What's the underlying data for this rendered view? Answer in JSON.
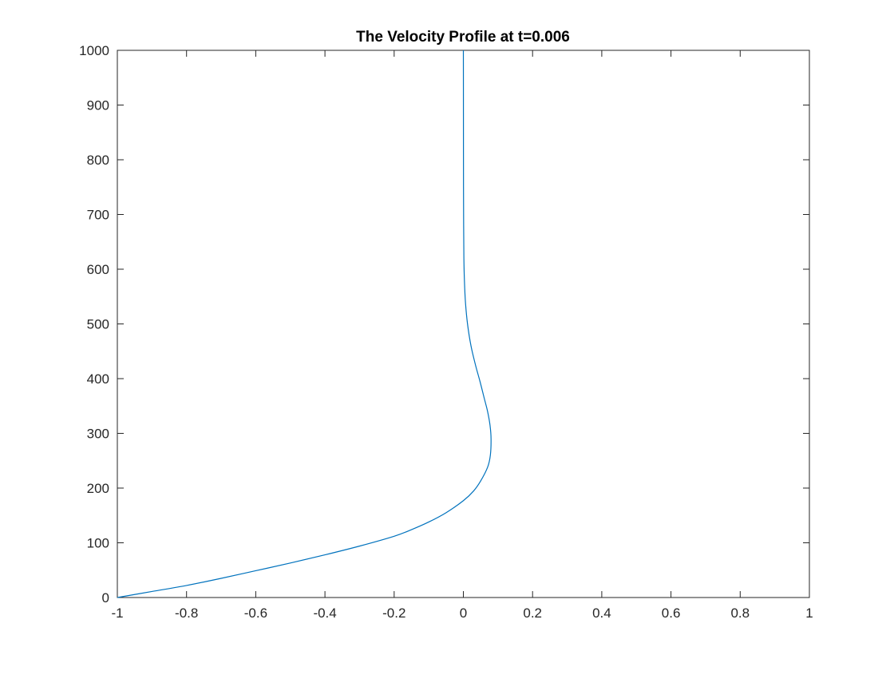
{
  "chart_data": {
    "type": "line",
    "title": "The Velocity Profile at t=0.006",
    "xlabel": "",
    "ylabel": "",
    "xlim": [
      -1,
      1
    ],
    "ylim": [
      0,
      1000
    ],
    "x_ticks": [
      -1,
      -0.8,
      -0.6,
      -0.4,
      -0.2,
      0,
      0.2,
      0.4,
      0.6,
      0.8,
      1
    ],
    "x_tick_labels": [
      "-1",
      "-0.8",
      "-0.6",
      "-0.4",
      "-0.2",
      "0",
      "0.2",
      "0.4",
      "0.6",
      "0.8",
      "1"
    ],
    "y_ticks": [
      0,
      100,
      200,
      300,
      400,
      500,
      600,
      700,
      800,
      900,
      1000
    ],
    "y_tick_labels": [
      "0",
      "100",
      "200",
      "300",
      "400",
      "500",
      "600",
      "700",
      "800",
      "900",
      "1000"
    ],
    "grid": false,
    "legend": "none",
    "series_color": "#0072BD",
    "series": [
      {
        "x": [
          -1.0,
          -0.9,
          -0.8,
          -0.7,
          -0.6,
          -0.5,
          -0.4,
          -0.3,
          -0.2,
          -0.15,
          -0.1,
          -0.05,
          0.0,
          0.03,
          0.05,
          0.07,
          0.078,
          0.08,
          0.077,
          0.07,
          0.06,
          0.048,
          0.035,
          0.022,
          0.012,
          0.006,
          0.003,
          0.0015,
          0.0008,
          0.0004,
          0.0002,
          0.0001,
          0.0
        ],
        "y": [
          0,
          11,
          22,
          35,
          49,
          63,
          78,
          94,
          112,
          124,
          138,
          155,
          177,
          195,
          213,
          238,
          260,
          290,
          315,
          340,
          365,
          395,
          425,
          460,
          500,
          540,
          580,
          620,
          680,
          750,
          850,
          950,
          1000
        ]
      }
    ]
  }
}
